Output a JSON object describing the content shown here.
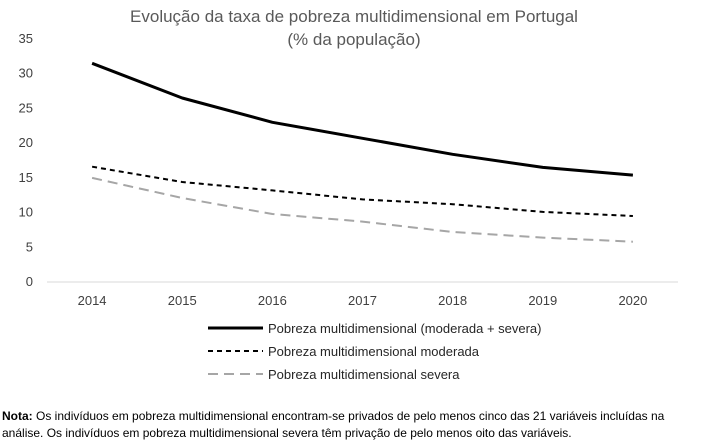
{
  "chart_data": {
    "type": "line",
    "title": [
      "Evolução da taxa de pobreza multidimensional em Portugal",
      "(% da população)"
    ],
    "xlabel": "",
    "ylabel": "",
    "x": [
      "2014",
      "2015",
      "2016",
      "2017",
      "2018",
      "2019",
      "2020"
    ],
    "ylim": [
      0,
      35
    ],
    "yticks": [
      0,
      5,
      10,
      15,
      20,
      25,
      30,
      35
    ],
    "grid": false,
    "legend_position": "bottom",
    "series": [
      {
        "name": "Pobreza multidimensional (moderada + severa)",
        "values": [
          31.5,
          26.5,
          23.0,
          20.7,
          18.4,
          16.5,
          15.4
        ],
        "color": "#000000",
        "style": "solid"
      },
      {
        "name": "Pobreza multidimensional moderada",
        "values": [
          16.6,
          14.4,
          13.2,
          11.9,
          11.2,
          10.1,
          9.5
        ],
        "color": "#000000",
        "style": "dashed"
      },
      {
        "name": "Pobreza multidimensional severa",
        "values": [
          15.0,
          12.1,
          9.8,
          8.7,
          7.2,
          6.4,
          5.8
        ],
        "color": "#a6a6a6",
        "style": "long-dashed"
      }
    ]
  },
  "note": {
    "label": "Nota:",
    "text": " Os indivíduos em pobreza multidimensional encontram-se privados de pelo menos cinco das 21 variáveis incluídas na análise. Os indivíduos em pobreza multidimensional severa têm privação de pelo menos oito das variáveis."
  }
}
